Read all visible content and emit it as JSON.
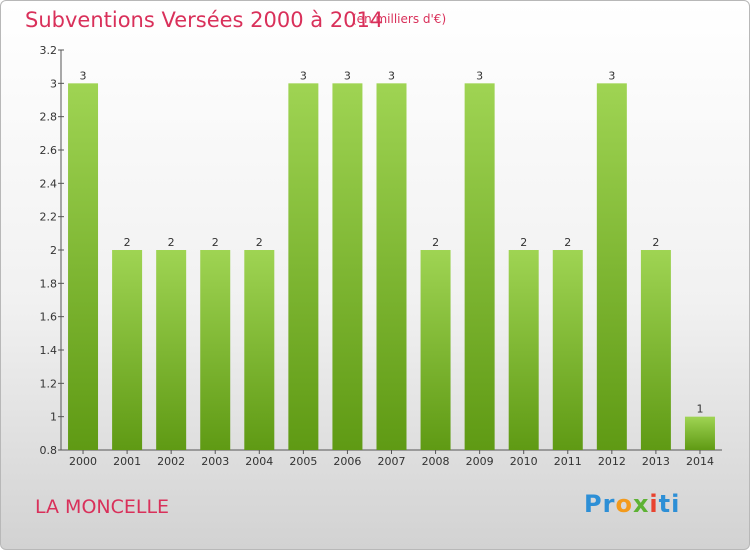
{
  "header": {
    "title": "Subventions Versées 2000 à 2014",
    "unit": "(en milliers d'€)"
  },
  "footer": {
    "commune": "LA MONCELLE",
    "logo": "Proxiti"
  },
  "colors": {
    "title": "#d9305a",
    "bar_top": "#9fd453",
    "bar_bottom": "#5f9a14"
  },
  "chart_data": {
    "type": "bar",
    "title": "Subventions Versées 2000 à 2014",
    "subtitle": "(en milliers d'€)",
    "categories": [
      "2000",
      "2001",
      "2002",
      "2003",
      "2004",
      "2005",
      "2006",
      "2007",
      "2008",
      "2009",
      "2010",
      "2011",
      "2012",
      "2013",
      "2014"
    ],
    "values": [
      3,
      2,
      2,
      2,
      2,
      3,
      3,
      3,
      2,
      3,
      2,
      2,
      3,
      2,
      1
    ],
    "value_labels": [
      "3",
      "2",
      "2",
      "2",
      "2",
      "3",
      "3",
      "3",
      "2",
      "3",
      "2",
      "2",
      "3",
      "2",
      "1"
    ],
    "ylim": [
      0.8,
      3.2
    ],
    "yticks": [
      0.8,
      1,
      1.2,
      1.4,
      1.6,
      1.8,
      2,
      2.2,
      2.4,
      2.6,
      2.8,
      3,
      3.2
    ],
    "ytick_labels": [
      "0.8",
      "1",
      "1.2",
      "1.4",
      "1.6",
      "1.8",
      "2",
      "2.2",
      "2.4",
      "2.6",
      "2.8",
      "3",
      "3.2"
    ],
    "xlabel": "",
    "ylabel": "",
    "grid": false,
    "legend": "none"
  }
}
